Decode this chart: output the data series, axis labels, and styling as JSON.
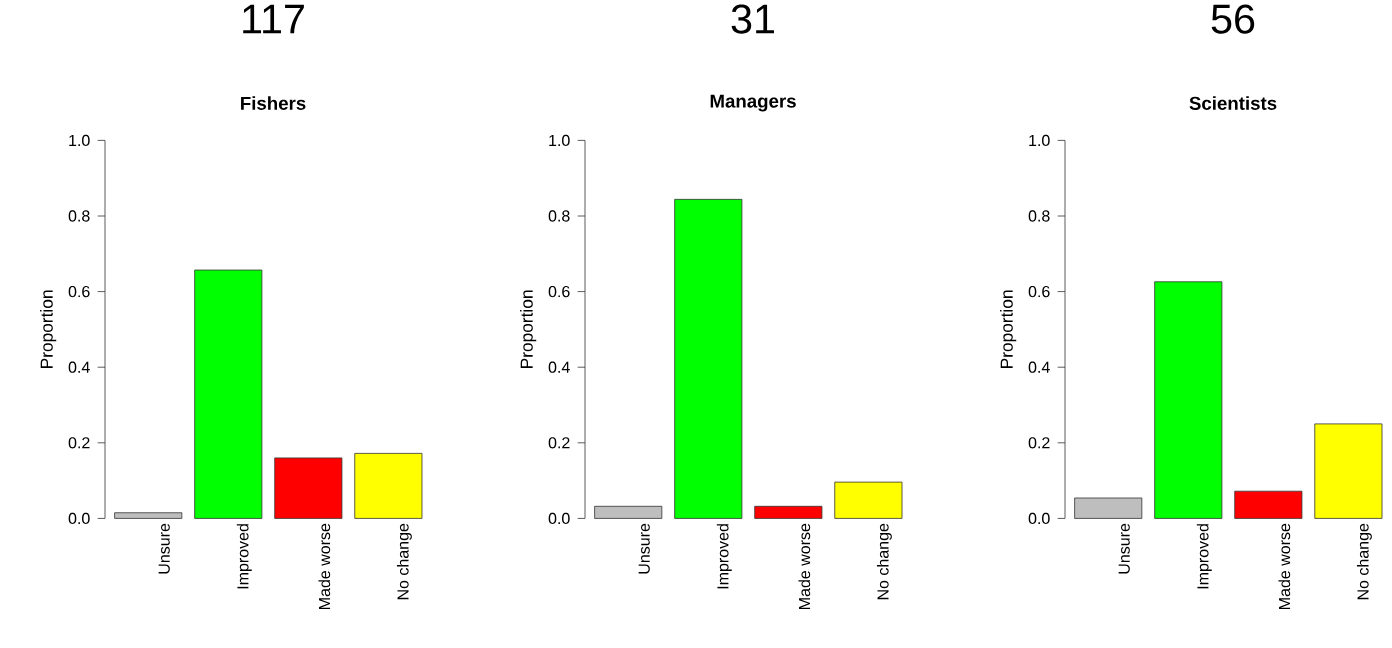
{
  "chart_data": [
    {
      "type": "bar",
      "title": "117",
      "subtitle": "Fishers",
      "ylabel": "Proportion",
      "categories": [
        "Unsure",
        "Improved",
        "Made worse",
        "No change"
      ],
      "values": [
        0.015,
        0.657,
        0.16,
        0.172
      ],
      "colors": [
        "#bebebe",
        "#00ff00",
        "#ff0000",
        "#ffff00"
      ],
      "ylim": [
        0,
        1
      ],
      "yticks": [
        {
          "value": 0,
          "label": "0.0"
        },
        {
          "value": 0.2,
          "label": "0.2"
        },
        {
          "value": 0.4,
          "label": "0.4"
        },
        {
          "value": 0.6,
          "label": "0.6"
        },
        {
          "value": 0.8,
          "label": "0.8"
        },
        {
          "value": 1,
          "label": "1.0"
        }
      ]
    },
    {
      "type": "bar",
      "title": "31",
      "subtitle": "Managers",
      "ylabel": "Proportion",
      "categories": [
        "Unsure",
        "Improved",
        "Made worse",
        "No change"
      ],
      "values": [
        0.032,
        0.844,
        0.032,
        0.096
      ],
      "colors": [
        "#bebebe",
        "#00ff00",
        "#ff0000",
        "#ffff00"
      ],
      "ylim": [
        0,
        1
      ],
      "yticks": [
        {
          "value": 0,
          "label": "0.0"
        },
        {
          "value": 0.2,
          "label": "0.2"
        },
        {
          "value": 0.4,
          "label": "0.4"
        },
        {
          "value": 0.6,
          "label": "0.6"
        },
        {
          "value": 0.8,
          "label": "0.8"
        },
        {
          "value": 1,
          "label": "1.0"
        }
      ]
    },
    {
      "type": "bar",
      "title": "56",
      "subtitle": "Scientists",
      "ylabel": "Proportion",
      "categories": [
        "Unsure",
        "Improved",
        "Made worse",
        "No change"
      ],
      "values": [
        0.054,
        0.626,
        0.072,
        0.25
      ],
      "colors": [
        "#bebebe",
        "#00ff00",
        "#ff0000",
        "#ffff00"
      ],
      "ylim": [
        0,
        1
      ],
      "yticks": [
        {
          "value": 0,
          "label": "0.0"
        },
        {
          "value": 0.2,
          "label": "0.2"
        },
        {
          "value": 0.4,
          "label": "0.4"
        },
        {
          "value": 0.6,
          "label": "0.6"
        },
        {
          "value": 0.8,
          "label": "0.8"
        },
        {
          "value": 1,
          "label": "1.0"
        }
      ]
    }
  ]
}
